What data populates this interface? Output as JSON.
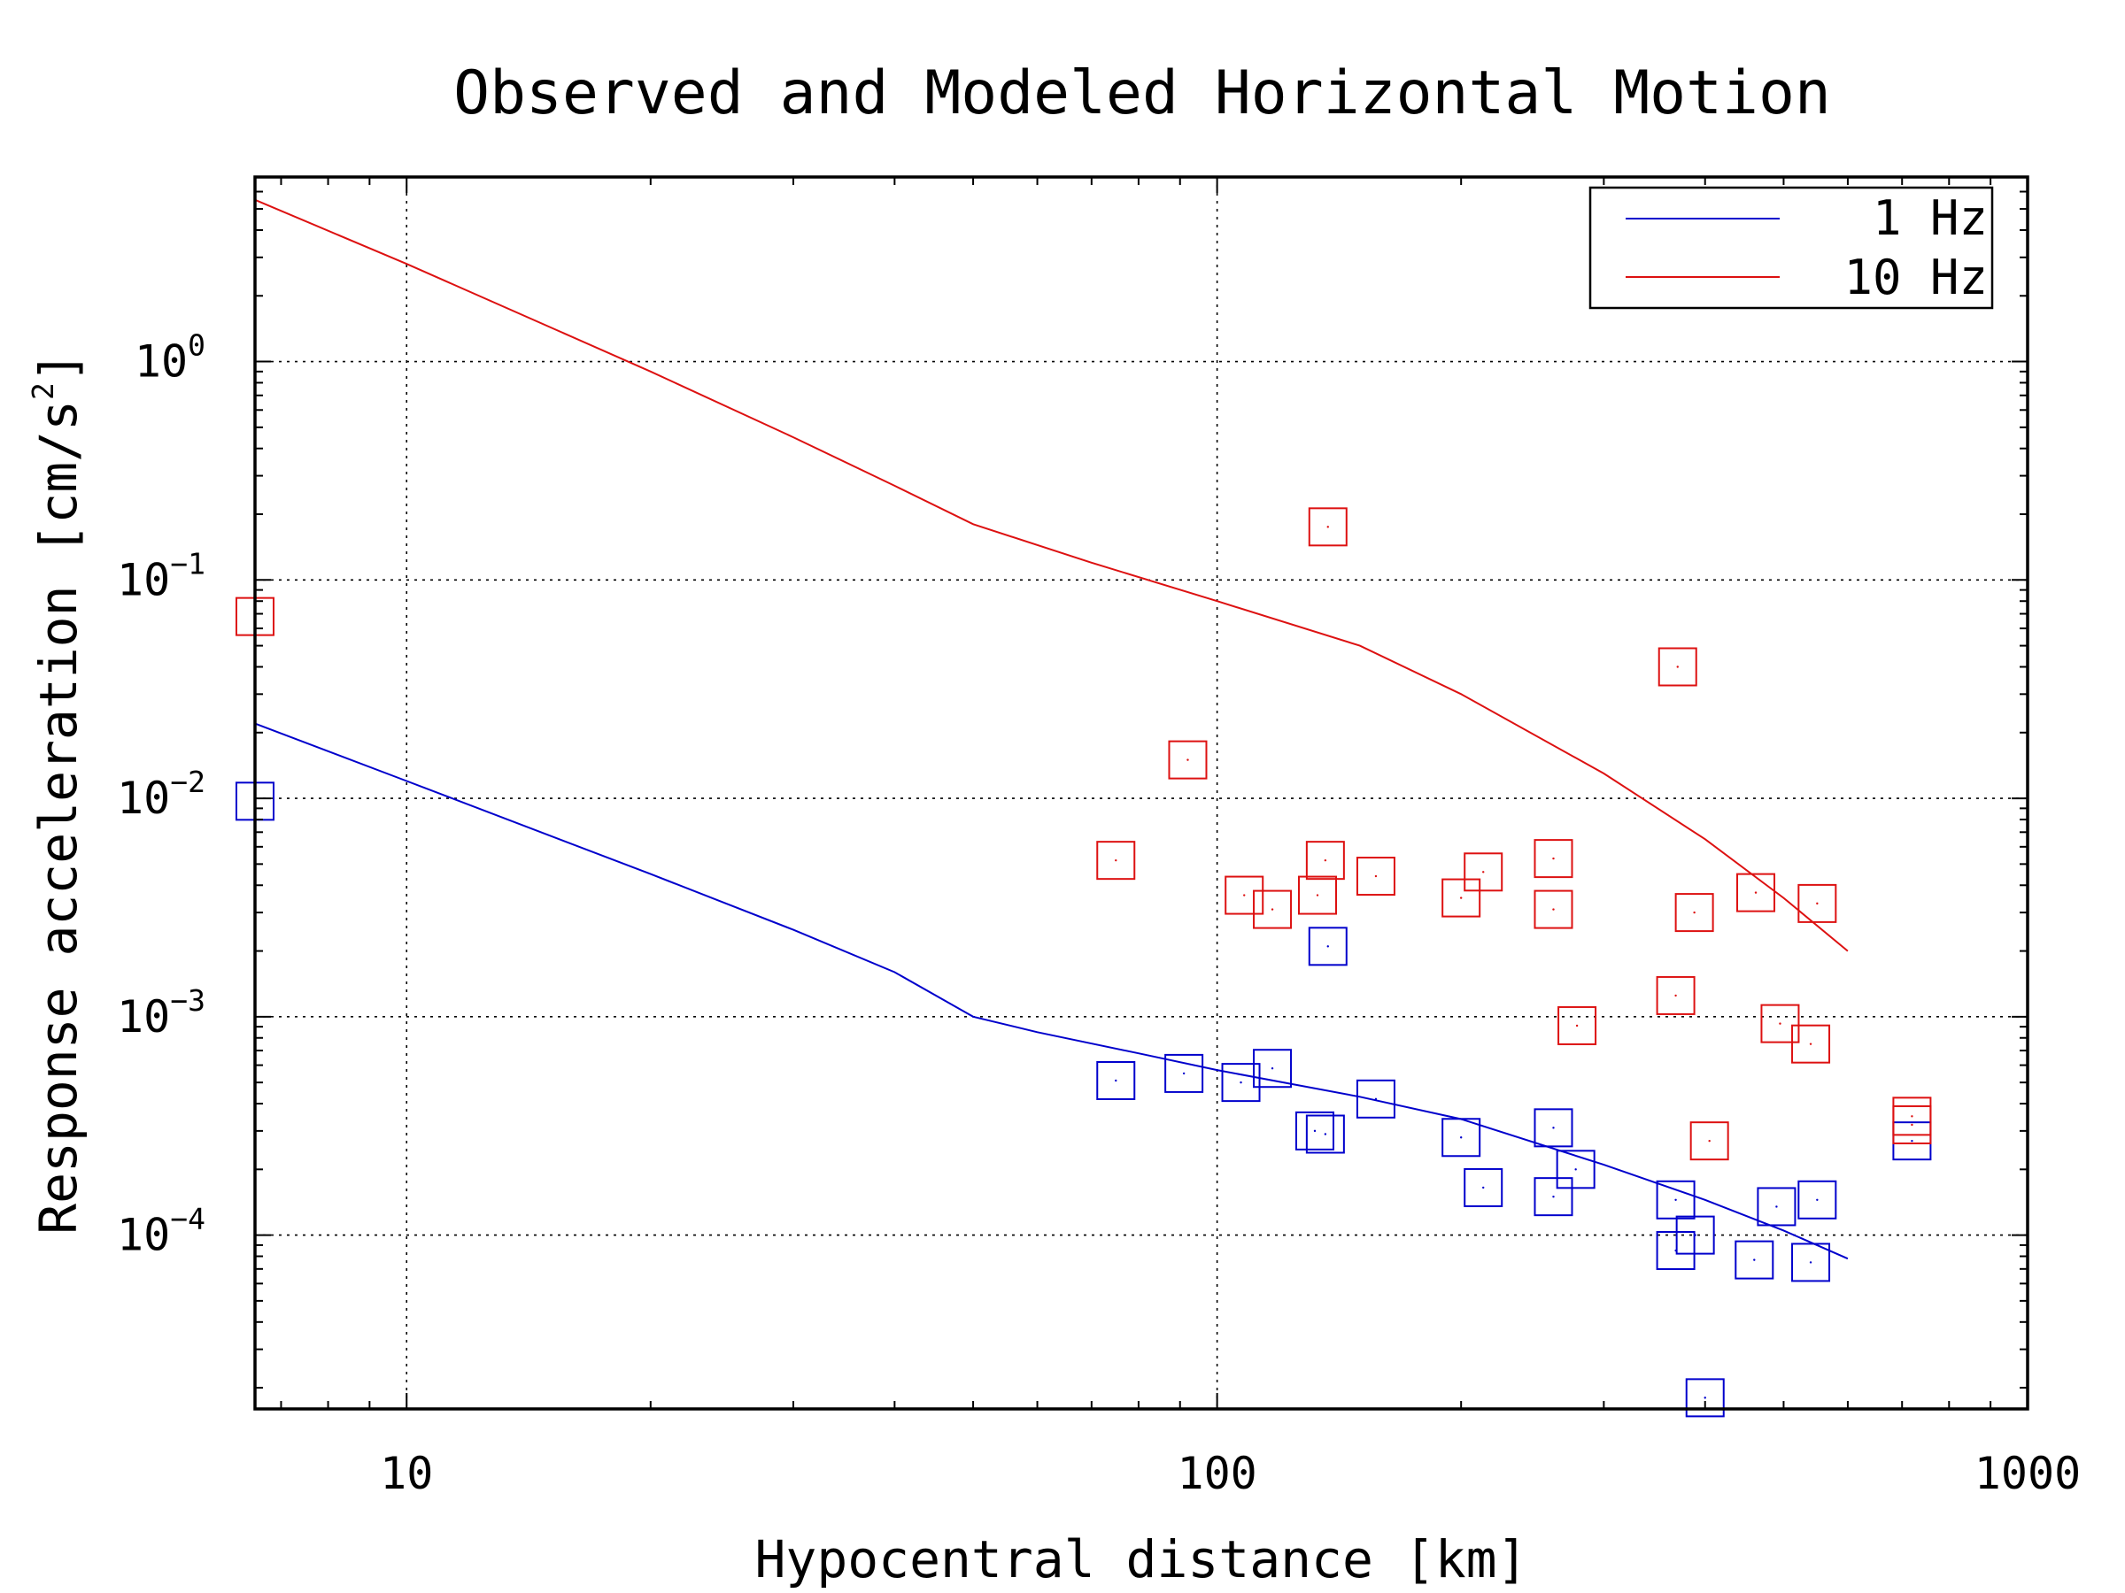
{
  "chart_data": {
    "type": "scatter",
    "title": "Observed and Modeled Horizontal Motion",
    "xlabel": "Hypocentral distance [km]",
    "ylabel": "Response acceleration [cm/s",
    "ylabel_exponent": "2",
    "ylabel_close": "]",
    "xscale": "log",
    "yscale": "log",
    "xlim": [
      6.5,
      1000
    ],
    "ylim": [
      1.6e-05,
      7
    ],
    "x_ticks": [
      {
        "value": 10,
        "label": "10"
      },
      {
        "value": 100,
        "label": "100"
      },
      {
        "value": 1000,
        "label": "1000"
      }
    ],
    "y_ticks": [
      {
        "value": 1,
        "base": "10",
        "exp": "0"
      },
      {
        "value": 0.1,
        "base": "10",
        "exp": "−1"
      },
      {
        "value": 0.01,
        "base": "10",
        "exp": "−2"
      },
      {
        "value": 0.001,
        "base": "10",
        "exp": "−3"
      },
      {
        "value": 0.0001,
        "base": "10",
        "exp": "−4"
      }
    ],
    "grid": true,
    "legend_position": "top-right",
    "colors": {
      "1 Hz": "#0000cc",
      "10 Hz": "#dd1111"
    },
    "series": [
      {
        "name": "1 Hz",
        "model_line": {
          "x": [
            6.5,
            10,
            20,
            30,
            40,
            50,
            60,
            80,
            100,
            150,
            200,
            300,
            400,
            500,
            600
          ],
          "y": [
            0.022,
            0.012,
            0.0045,
            0.0025,
            0.0016,
            0.001,
            0.00085,
            0.00068,
            0.00057,
            0.00043,
            0.00034,
            0.00021,
            0.000145,
            0.000105,
            7.8e-05
          ]
        },
        "observed": [
          [
            6.5,
            0.0097
          ],
          [
            75,
            0.00051
          ],
          [
            91,
            0.00055
          ],
          [
            107,
            0.0005
          ],
          [
            117,
            0.00058
          ],
          [
            132,
            0.0003
          ],
          [
            136,
            0.00029
          ],
          [
            137,
            0.0021
          ],
          [
            157,
            0.00042
          ],
          [
            200,
            0.00028
          ],
          [
            213,
            0.000165
          ],
          [
            260,
            0.00031
          ],
          [
            260,
            0.00015
          ],
          [
            277,
            0.0002
          ],
          [
            368,
            0.000145
          ],
          [
            368,
            8.5e-05
          ],
          [
            389,
            0.0001
          ],
          [
            400,
            1.8e-05
          ],
          [
            460,
            7.7e-05
          ],
          [
            490,
            0.000135
          ],
          [
            540,
            7.5e-05
          ],
          [
            550,
            0.000145
          ],
          [
            720,
            0.00027
          ]
        ]
      },
      {
        "name": "10 Hz",
        "model_line": {
          "x": [
            6.5,
            10,
            20,
            30,
            40,
            50,
            70,
            100,
            150,
            200,
            300,
            400,
            500,
            600
          ],
          "y": [
            5.5,
            2.8,
            0.9,
            0.45,
            0.27,
            0.18,
            0.12,
            0.08,
            0.05,
            0.03,
            0.013,
            0.0065,
            0.0035,
            0.002
          ]
        },
        "observed": [
          [
            6.5,
            0.068
          ],
          [
            75,
            0.0052
          ],
          [
            92,
            0.015
          ],
          [
            108,
            0.0036
          ],
          [
            117,
            0.0031
          ],
          [
            133,
            0.0036
          ],
          [
            136,
            0.0052
          ],
          [
            137,
            0.175
          ],
          [
            157,
            0.0044
          ],
          [
            200,
            0.0035
          ],
          [
            213,
            0.0046
          ],
          [
            260,
            0.0053
          ],
          [
            260,
            0.0031
          ],
          [
            278,
            0.00091
          ],
          [
            368,
            0.00125
          ],
          [
            370,
            0.04
          ],
          [
            388,
            0.003
          ],
          [
            405,
            0.00027
          ],
          [
            462,
            0.0037
          ],
          [
            495,
            0.00093
          ],
          [
            540,
            0.00075
          ],
          [
            550,
            0.0033
          ],
          [
            720,
            0.00035
          ],
          [
            720,
            0.00032
          ]
        ]
      }
    ]
  }
}
